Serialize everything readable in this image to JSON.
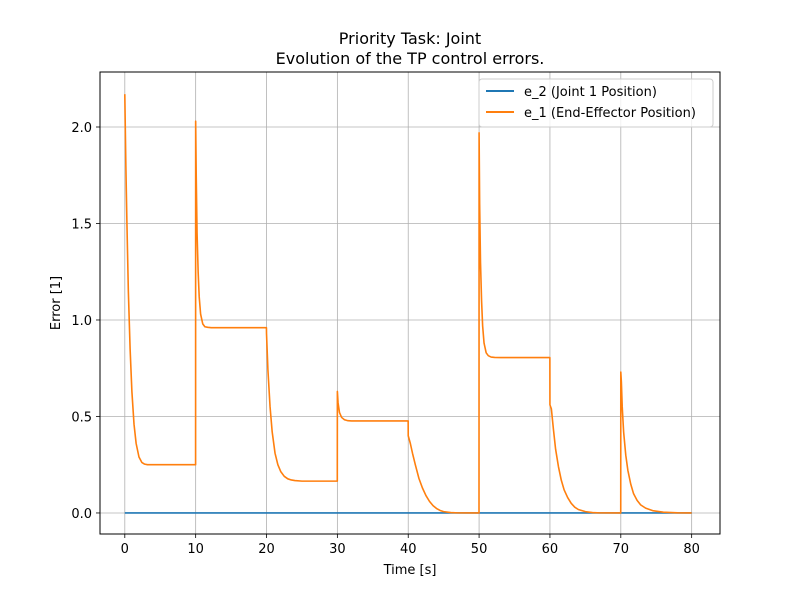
{
  "chart_data": {
    "type": "line",
    "title": "Priority Task: Joint",
    "subtitle": "Evolution of the TP control errors.",
    "xlabel": "Time [s]",
    "ylabel": "Error [1]",
    "xlim": [
      -3.5,
      84.0
    ],
    "ylim": [
      -0.109,
      2.285
    ],
    "xticks": [
      0,
      10,
      20,
      30,
      40,
      50,
      60,
      70,
      80
    ],
    "yticks": [
      0.0,
      0.5,
      1.0,
      1.5,
      2.0
    ],
    "xtick_labels": [
      "0",
      "10",
      "20",
      "30",
      "40",
      "50",
      "60",
      "70",
      "80"
    ],
    "ytick_labels": [
      "0.0",
      "0.5",
      "1.0",
      "1.5",
      "2.0"
    ],
    "grid": true,
    "legend_position": "top-right",
    "series": [
      {
        "name": "e_2 (Joint 1 Position)",
        "color": "#1f77b4",
        "x": [
          0,
          80
        ],
        "y": [
          0.0,
          0.0
        ]
      },
      {
        "name": "e_1 (End-Effector Position)",
        "color": "#ff7f0e",
        "x": [
          0.0,
          0.15,
          0.3,
          0.5,
          0.75,
          1.0,
          1.3,
          1.6,
          2.0,
          2.4,
          2.8,
          3.2,
          4.0,
          5.0,
          7.0,
          9.99,
          10.0,
          10.08,
          10.2,
          10.35,
          10.5,
          10.7,
          11.0,
          11.3,
          11.7,
          12.2,
          13.0,
          15.0,
          19.99,
          20.0,
          20.2,
          20.5,
          20.8,
          21.2,
          21.6,
          22.0,
          22.5,
          23.0,
          23.5,
          24.0,
          25.0,
          26.0,
          29.99,
          30.0,
          30.1,
          30.3,
          30.6,
          31.0,
          31.5,
          32.0,
          33.0,
          35.0,
          39.99,
          40.0,
          40.3,
          40.6,
          41.0,
          41.5,
          42.0,
          42.5,
          43.0,
          43.5,
          44.0,
          44.5,
          45.0,
          46.0,
          47.0,
          49.99,
          50.0,
          50.08,
          50.2,
          50.35,
          50.5,
          50.7,
          51.0,
          51.3,
          51.7,
          52.2,
          53.0,
          55.0,
          59.99,
          60.0,
          60.2,
          60.5,
          60.8,
          61.2,
          61.6,
          62.0,
          62.5,
          63.0,
          63.5,
          64.0,
          65.0,
          66.0,
          67.0,
          69.99,
          70.0,
          70.08,
          70.2,
          70.4,
          70.7,
          71.0,
          71.4,
          71.8,
          72.3,
          72.8,
          73.5,
          74.5,
          76.0,
          78.0,
          80.0
        ],
        "y": [
          2.17,
          1.8,
          1.5,
          1.15,
          0.85,
          0.63,
          0.46,
          0.36,
          0.29,
          0.262,
          0.253,
          0.25,
          0.25,
          0.25,
          0.25,
          0.25,
          2.03,
          1.75,
          1.45,
          1.25,
          1.12,
          1.03,
          0.98,
          0.965,
          0.962,
          0.96,
          0.96,
          0.96,
          0.96,
          0.93,
          0.74,
          0.55,
          0.42,
          0.31,
          0.25,
          0.215,
          0.19,
          0.177,
          0.171,
          0.168,
          0.165,
          0.165,
          0.165,
          0.63,
          0.57,
          0.52,
          0.495,
          0.483,
          0.478,
          0.477,
          0.477,
          0.477,
          0.477,
          0.4,
          0.36,
          0.31,
          0.25,
          0.18,
          0.13,
          0.09,
          0.06,
          0.038,
          0.023,
          0.013,
          0.007,
          0.002,
          0.0005,
          0.0,
          1.97,
          1.6,
          1.3,
          1.1,
          0.97,
          0.88,
          0.83,
          0.815,
          0.808,
          0.806,
          0.805,
          0.805,
          0.805,
          0.56,
          0.54,
          0.43,
          0.33,
          0.24,
          0.17,
          0.12,
          0.08,
          0.05,
          0.03,
          0.018,
          0.007,
          0.002,
          0.0005,
          0.0,
          0.73,
          0.68,
          0.55,
          0.42,
          0.3,
          0.22,
          0.15,
          0.1,
          0.065,
          0.042,
          0.025,
          0.012,
          0.004,
          0.001,
          0.0
        ]
      }
    ]
  }
}
